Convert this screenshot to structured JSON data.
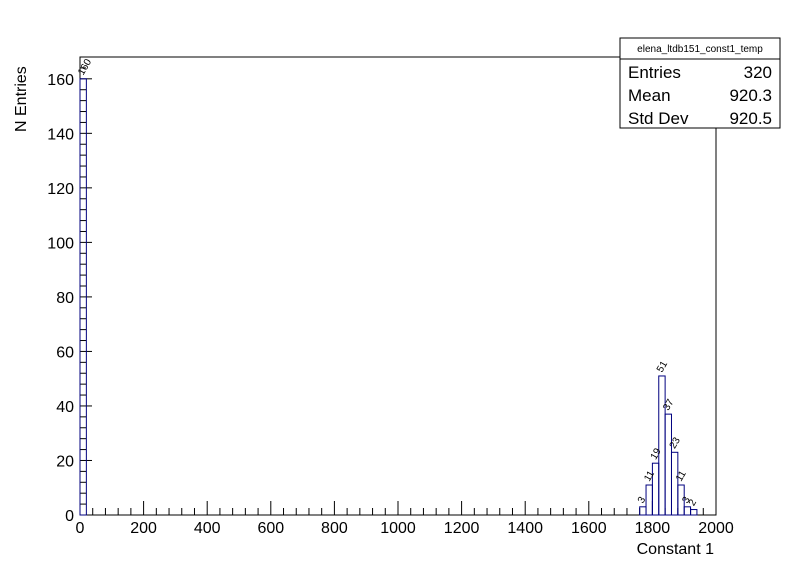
{
  "chart_data": {
    "type": "bar",
    "title": "",
    "xlabel": "Constant 1",
    "ylabel": "N Entries",
    "xlim": [
      0,
      2000
    ],
    "ylim": [
      0,
      168
    ],
    "grid": false,
    "x_ticks": [
      0,
      200,
      400,
      600,
      800,
      1000,
      1200,
      1400,
      1600,
      1800,
      2000
    ],
    "y_ticks": [
      0,
      20,
      40,
      60,
      80,
      100,
      120,
      140,
      160
    ],
    "bins": [
      {
        "x0": 0,
        "x1": 20,
        "count": 160,
        "label": "160"
      },
      {
        "x0": 1760,
        "x1": 1780,
        "count": 3,
        "label": "3"
      },
      {
        "x0": 1780,
        "x1": 1800,
        "count": 11,
        "label": "11"
      },
      {
        "x0": 1800,
        "x1": 1820,
        "count": 19,
        "label": "19"
      },
      {
        "x0": 1820,
        "x1": 1840,
        "count": 51,
        "label": "51"
      },
      {
        "x0": 1840,
        "x1": 1860,
        "count": 37,
        "label": "37"
      },
      {
        "x0": 1860,
        "x1": 1880,
        "count": 23,
        "label": "23"
      },
      {
        "x0": 1880,
        "x1": 1900,
        "count": 11,
        "label": "11"
      },
      {
        "x0": 1900,
        "x1": 1920,
        "count": 3,
        "label": "3"
      },
      {
        "x0": 1920,
        "x1": 1940,
        "count": 2,
        "label": "2"
      }
    ],
    "line_color": "#00007f"
  },
  "stats_box": {
    "title": "elena_ltdb151_const1_temp",
    "rows": [
      {
        "label": "Entries",
        "value": "320"
      },
      {
        "label": "Mean",
        "value": "920.3"
      },
      {
        "label": "Std Dev",
        "value": "920.5"
      }
    ]
  }
}
